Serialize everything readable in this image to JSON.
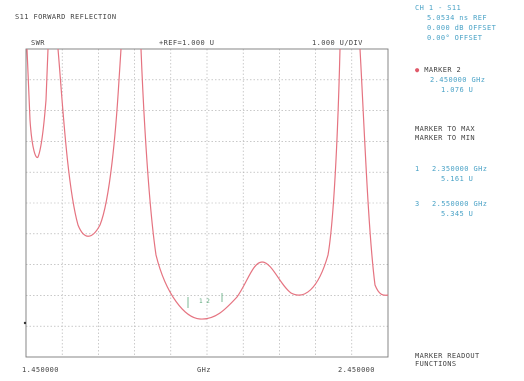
{
  "header": {
    "title_partial": "",
    "subtitle": "S11 FORWARD REFLECTION"
  },
  "plot": {
    "format": "SWR",
    "ref_readout": "+REF=1.000 U",
    "scale_readout": "1.000 U/DIV",
    "x_start": "1.450000",
    "x_unit": "GHz",
    "x_stop": "2.450000",
    "grid_color": "#a9a9a9",
    "trace_color": "#e57380",
    "marker_color": "#5aa87a"
  },
  "side_panel": {
    "channel": {
      "title": "CH 1 - S11",
      "ref": "5.0534 ns REF",
      "offset_db": "0.000 dB OFFSET",
      "offset_deg": "0.00°  OFFSET"
    },
    "active_marker": {
      "label": "MARKER 2",
      "freq": "2.450000 GHz",
      "value": "1.076 U"
    },
    "functions": {
      "to_max": "MARKER TO MAX",
      "to_min": "MARKER TO MIN"
    },
    "marker_1": {
      "num": "1",
      "freq": "2.350000 GHz",
      "value": "5.161 U"
    },
    "marker_3": {
      "num": "3",
      "freq": "2.550000 GHz",
      "value": "5.345 U"
    },
    "softkey": {
      "line1": "MARKER READOUT",
      "line2": "FUNCTIONS"
    }
  }
}
